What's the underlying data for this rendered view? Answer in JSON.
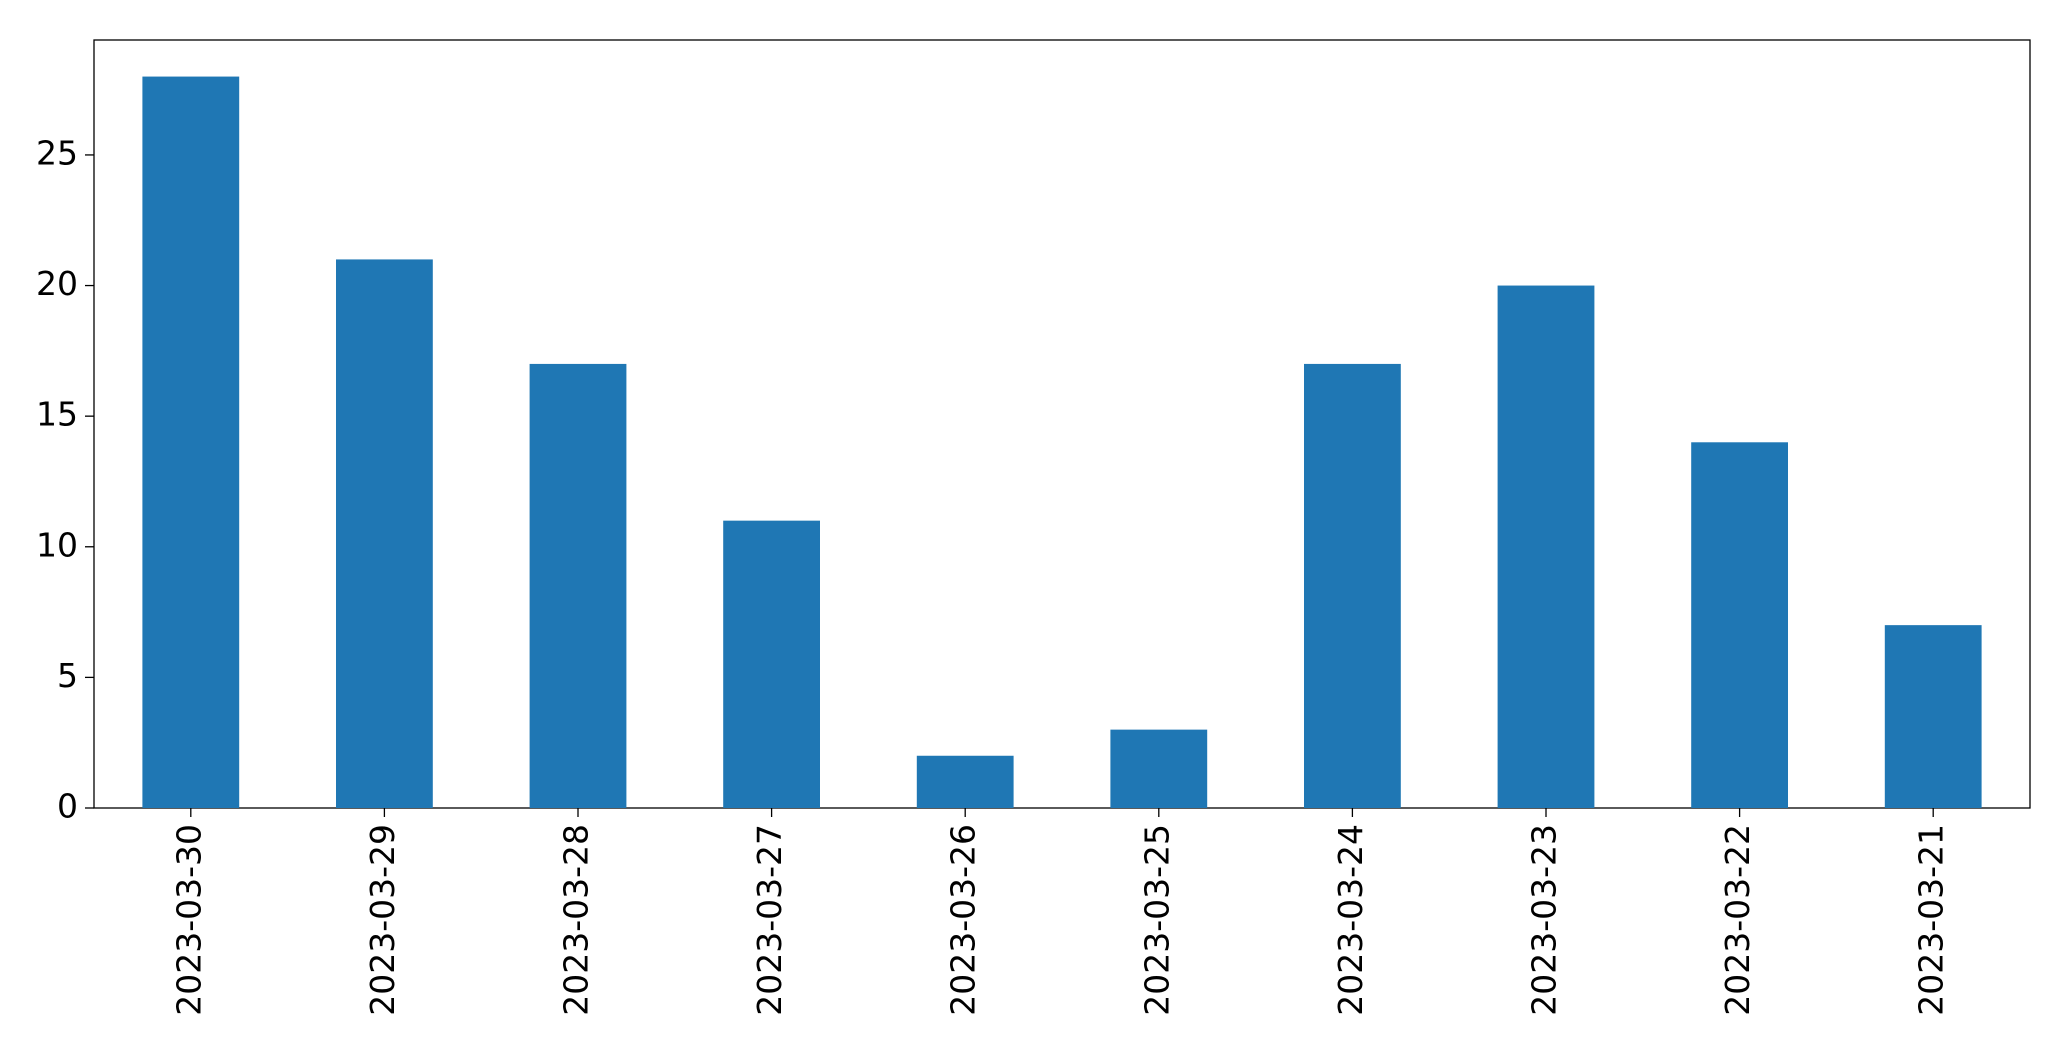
{
  "chart_data": {
    "type": "bar",
    "categories": [
      "2023-03-30",
      "2023-03-29",
      "2023-03-28",
      "2023-03-27",
      "2023-03-26",
      "2023-03-25",
      "2023-03-24",
      "2023-03-23",
      "2023-03-22",
      "2023-03-21"
    ],
    "values": [
      28,
      21,
      17,
      11,
      2,
      3,
      17,
      20,
      14,
      7
    ],
    "color": "#1f77b4",
    "ylim": [
      0,
      29.4
    ],
    "yticks": [
      0,
      5,
      10,
      15,
      20,
      25
    ],
    "grid": false
  }
}
